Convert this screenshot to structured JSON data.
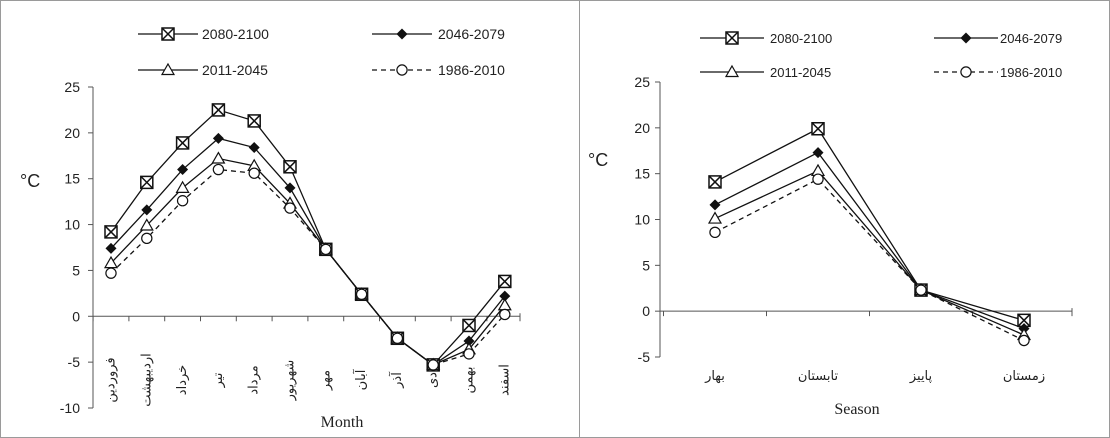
{
  "chart_data": [
    {
      "type": "line",
      "ylabel": "°C",
      "xlabel": "Month",
      "ylim": [
        -10,
        25
      ],
      "yticks": [
        -10,
        -5,
        0,
        5,
        10,
        15,
        20,
        25
      ],
      "categories": [
        "فروردین",
        "اردیبهشت",
        "خرداد",
        "تیر",
        "مرداد",
        "شهریور",
        "مهر",
        "آبان",
        "آذر",
        "دی",
        "بهمن",
        "اسفند"
      ],
      "series": [
        {
          "name": "2080-2100",
          "marker": "x-square",
          "dash": false,
          "values": [
            9.2,
            14.6,
            18.9,
            22.5,
            21.3,
            16.3,
            7.3,
            2.4,
            -2.4,
            -5.3,
            -1.0,
            3.8
          ]
        },
        {
          "name": "2046-2079",
          "marker": "diamond",
          "dash": false,
          "values": [
            7.4,
            11.6,
            16.0,
            19.4,
            18.4,
            14.0,
            7.3,
            2.4,
            -2.4,
            -5.3,
            -2.7,
            2.2
          ]
        },
        {
          "name": "2011-2045",
          "marker": "triangle",
          "dash": false,
          "values": [
            5.8,
            9.9,
            14.0,
            17.2,
            16.4,
            12.3,
            7.3,
            2.4,
            -2.4,
            -5.3,
            -3.6,
            1.2
          ]
        },
        {
          "name": "1986-2010",
          "marker": "circle",
          "dash": true,
          "values": [
            4.7,
            8.5,
            12.6,
            16.0,
            15.6,
            11.8,
            7.3,
            2.4,
            -2.4,
            -5.3,
            -4.1,
            0.2
          ]
        }
      ]
    },
    {
      "type": "line",
      "ylabel": "°C",
      "xlabel": "Season",
      "ylim": [
        -5,
        25
      ],
      "yticks": [
        -5,
        0,
        5,
        10,
        15,
        20,
        25
      ],
      "categories": [
        "بهار",
        "تابستان",
        "پاییز",
        "زمستان"
      ],
      "series": [
        {
          "name": "2080-2100",
          "marker": "x-square",
          "dash": false,
          "values": [
            14.1,
            19.9,
            2.3,
            -1.0
          ]
        },
        {
          "name": "2046-2079",
          "marker": "diamond",
          "dash": false,
          "values": [
            11.6,
            17.3,
            2.3,
            -1.9
          ]
        },
        {
          "name": "2011-2045",
          "marker": "triangle",
          "dash": false,
          "values": [
            10.1,
            15.3,
            2.3,
            -2.6
          ]
        },
        {
          "name": "1986-2010",
          "marker": "circle",
          "dash": true,
          "values": [
            8.6,
            14.4,
            2.3,
            -3.2
          ]
        }
      ]
    }
  ]
}
